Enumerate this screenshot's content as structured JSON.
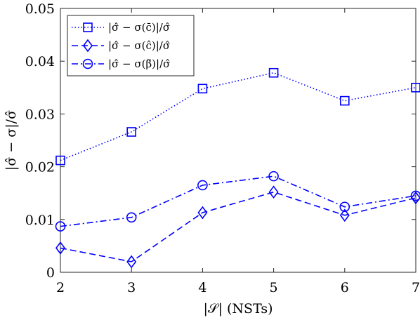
{
  "chart_data": {
    "type": "line",
    "xlabel": "|𝒮| (NSTs)",
    "ylabel": "|σ̂ − σ|/σ̂",
    "x": [
      2,
      3,
      4,
      5,
      6,
      7
    ],
    "xticks": [
      "2",
      "3",
      "4",
      "5",
      "6",
      "7"
    ],
    "yticks": [
      "0",
      "0.01",
      "0.02",
      "0.03",
      "0.04",
      "0.05"
    ],
    "xlim": [
      2,
      7
    ],
    "ylim": [
      0,
      0.05
    ],
    "grid": false,
    "legend_position": "top-left",
    "color": "#0000ff",
    "series": [
      {
        "name": "|σ̂ − σ(c̄)|/σ̂",
        "values": [
          0.0212,
          0.0266,
          0.0348,
          0.0378,
          0.0325,
          0.035
        ],
        "line": "dotted",
        "marker": "square"
      },
      {
        "name": "|σ̂ − σ(ĉ)|/σ̂",
        "values": [
          0.0046,
          0.002,
          0.0113,
          0.0152,
          0.0108,
          0.0141
        ],
        "line": "dashed",
        "marker": "diamond"
      },
      {
        "name": "|σ̂ − σ(β̃)|/σ̂",
        "values": [
          0.0087,
          0.0104,
          0.0165,
          0.0182,
          0.0124,
          0.0145
        ],
        "line": "dashdot",
        "marker": "circle"
      }
    ]
  }
}
